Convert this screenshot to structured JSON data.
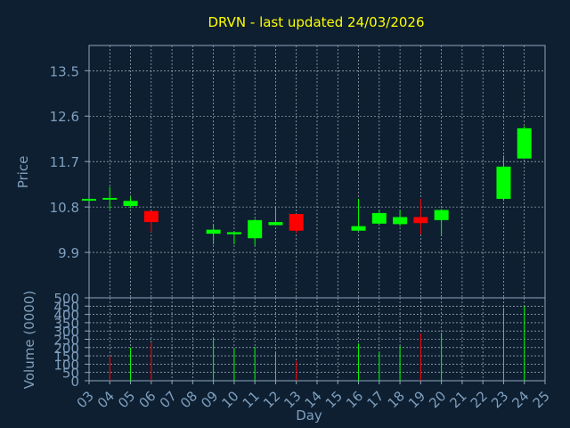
{
  "colors": {
    "background": "#0d1f30",
    "title": "#ffff00",
    "axis_text": "#7f9fbf",
    "frame": "#8fa6bf",
    "grid": "#c8d2dc",
    "up": "#00ff00",
    "down": "#ff0000"
  },
  "chart_data": [
    {
      "type": "candlestick",
      "title": "DRVN - last updated 24/03/2026",
      "xlabel": "",
      "ylabel": "Price",
      "ylim": [
        9.0,
        14.0
      ],
      "yticks": [
        9.9,
        10.8,
        11.7,
        12.6,
        13.5
      ],
      "grid": true,
      "x_ticks": [
        "03",
        "04",
        "05",
        "06",
        "07",
        "08",
        "09",
        "10",
        "11",
        "12",
        "13",
        "14",
        "15",
        "16",
        "17",
        "18",
        "19",
        "20",
        "21",
        "22",
        "23",
        "24",
        "25"
      ],
      "candles": [
        {
          "day": "03",
          "open": 10.94,
          "high": 10.96,
          "low": 10.92,
          "close": 10.96
        },
        {
          "day": "04",
          "open": 10.98,
          "high": 11.2,
          "low": 10.76,
          "close": 10.98
        },
        {
          "day": "05",
          "open": 10.82,
          "high": 11.0,
          "low": 10.78,
          "close": 10.92
        },
        {
          "day": "06",
          "open": 10.72,
          "high": 10.72,
          "low": 10.3,
          "close": 10.5
        },
        {
          "day": "09",
          "open": 10.27,
          "high": 10.45,
          "low": 10.06,
          "close": 10.35
        },
        {
          "day": "10",
          "open": 10.26,
          "high": 10.32,
          "low": 10.06,
          "close": 10.3
        },
        {
          "day": "11",
          "open": 10.18,
          "high": 10.56,
          "low": 10.04,
          "close": 10.54
        },
        {
          "day": "12",
          "open": 10.44,
          "high": 10.8,
          "low": 10.44,
          "close": 10.5
        },
        {
          "day": "13",
          "open": 10.66,
          "high": 10.66,
          "low": 10.28,
          "close": 10.33
        },
        {
          "day": "16",
          "open": 10.33,
          "high": 10.96,
          "low": 10.33,
          "close": 10.42
        },
        {
          "day": "17",
          "open": 10.47,
          "high": 10.74,
          "low": 10.46,
          "close": 10.68
        },
        {
          "day": "18",
          "open": 10.46,
          "high": 10.74,
          "low": 10.42,
          "close": 10.6
        },
        {
          "day": "19",
          "open": 10.6,
          "high": 10.96,
          "low": 10.26,
          "close": 10.48
        },
        {
          "day": "20",
          "open": 10.54,
          "high": 10.76,
          "low": 10.22,
          "close": 10.74
        },
        {
          "day": "23",
          "open": 10.96,
          "high": 11.82,
          "low": 10.92,
          "close": 11.6
        },
        {
          "day": "24",
          "open": 11.76,
          "high": 12.4,
          "low": 11.76,
          "close": 12.36
        }
      ]
    },
    {
      "type": "bar",
      "xlabel": "Day",
      "ylabel": "Volume (0000)",
      "ylim": [
        0,
        500
      ],
      "yticks": [
        0,
        50,
        100,
        150,
        200,
        250,
        300,
        350,
        400,
        450,
        500
      ],
      "grid": true,
      "x_ticks": [
        "03",
        "04",
        "05",
        "06",
        "07",
        "08",
        "09",
        "10",
        "11",
        "12",
        "13",
        "14",
        "15",
        "16",
        "17",
        "18",
        "19",
        "20",
        "21",
        "22",
        "23",
        "24",
        "25"
      ],
      "volumes": [
        {
          "day": "03",
          "value": 0,
          "direction": "up"
        },
        {
          "day": "04",
          "value": 150,
          "direction": "down"
        },
        {
          "day": "05",
          "value": 200,
          "direction": "up"
        },
        {
          "day": "06",
          "value": 230,
          "direction": "down"
        },
        {
          "day": "09",
          "value": 255,
          "direction": "up"
        },
        {
          "day": "10",
          "value": 195,
          "direction": "up"
        },
        {
          "day": "11",
          "value": 205,
          "direction": "up"
        },
        {
          "day": "12",
          "value": 175,
          "direction": "up"
        },
        {
          "day": "13",
          "value": 120,
          "direction": "down"
        },
        {
          "day": "16",
          "value": 225,
          "direction": "up"
        },
        {
          "day": "17",
          "value": 175,
          "direction": "up"
        },
        {
          "day": "18",
          "value": 210,
          "direction": "up"
        },
        {
          "day": "19",
          "value": 285,
          "direction": "down"
        },
        {
          "day": "20",
          "value": 290,
          "direction": "up"
        },
        {
          "day": "23",
          "value": 440,
          "direction": "up"
        },
        {
          "day": "24",
          "value": 450,
          "direction": "up"
        }
      ]
    }
  ]
}
